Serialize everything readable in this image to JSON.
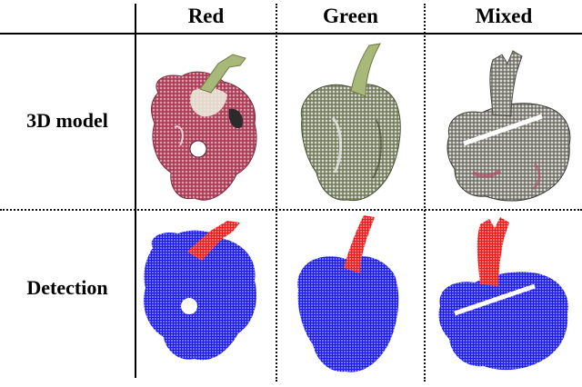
{
  "table": {
    "columns": [
      "Red",
      "Green",
      "Mixed"
    ],
    "rows": [
      "3D model",
      "Detection"
    ]
  },
  "colors": {
    "red_pepper_body": "#b84a64",
    "green_pepper_body": "#8a9274",
    "mixed_pepper_body": "#8e8e86",
    "stem_green": "#a8b878",
    "detection_body": "#1a1aee",
    "detection_stem": "#ee1a1a"
  },
  "icons": {
    "red-model": "pepper-point-cloud",
    "green-model": "pepper-point-cloud",
    "mixed-model": "pepper-point-cloud",
    "red-detection": "pepper-segmentation",
    "green-detection": "pepper-segmentation",
    "mixed-detection": "pepper-segmentation"
  }
}
